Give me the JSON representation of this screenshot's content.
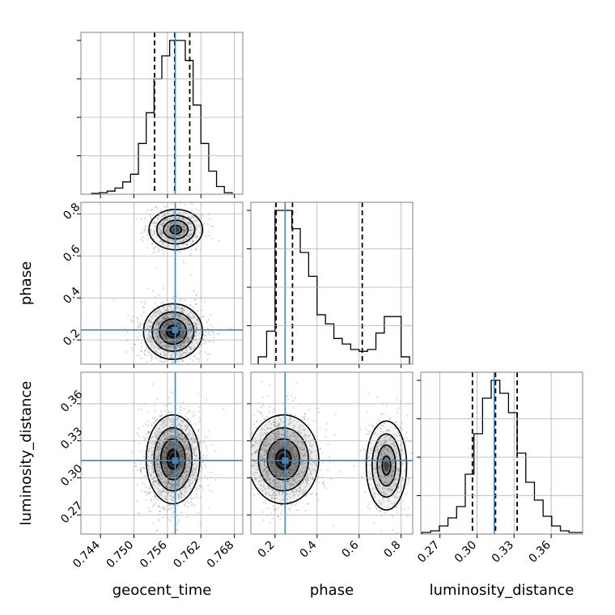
{
  "chart_data": {
    "type": "corner",
    "parameters": [
      "geocent_time",
      "phase",
      "luminosity_distance"
    ],
    "truths": {
      "geocent_time": 0.7574,
      "phase": 0.248,
      "luminosity_distance": 0.314
    },
    "axes": {
      "geocent_time": {
        "range": [
          0.7405,
          0.7695
        ],
        "ticks": [
          "0.744",
          "0.750",
          "0.756",
          "0.762",
          "0.768"
        ]
      },
      "phase": {
        "range": [
          0.085,
          0.855
        ],
        "ticks": [
          "0.2",
          "0.4",
          "0.6",
          "0.8"
        ]
      },
      "luminosity_distance": {
        "range": [
          0.2545,
          0.3855
        ],
        "ticks": [
          "0.27",
          "0.30",
          "0.33",
          "0.36"
        ]
      }
    },
    "marginals": {
      "geocent_time": {
        "quantiles": [
          0.7537,
          0.7573,
          0.76
        ],
        "bin_edges": [
          0.7424,
          0.7438,
          0.7452,
          0.7466,
          0.748,
          0.7494,
          0.7508,
          0.7522,
          0.7536,
          0.755,
          0.7564,
          0.7578,
          0.7592,
          0.7606,
          0.762,
          0.7634,
          0.7648,
          0.7662,
          0.7676
        ],
        "counts": [
          0.5,
          1,
          2,
          4,
          8,
          13,
          33,
          53,
          75,
          90,
          100,
          100,
          87,
          58,
          33,
          15,
          5,
          1
        ]
      },
      "phase": {
        "quantiles": [
          0.205,
          0.283,
          0.615
        ],
        "bin_edges": [
          0.12,
          0.16,
          0.2,
          0.24,
          0.28,
          0.32,
          0.36,
          0.4,
          0.44,
          0.48,
          0.52,
          0.56,
          0.6,
          0.64,
          0.68,
          0.72,
          0.76,
          0.8,
          0.84
        ],
        "counts": [
          4,
          18,
          84,
          84,
          74,
          61,
          48,
          27,
          22,
          14,
          11,
          8,
          7,
          8,
          17,
          26,
          26,
          4
        ]
      },
      "luminosity_distance": {
        "quantiles": [
          0.2963,
          0.315,
          0.3325
        ],
        "bin_edges": [
          0.2555,
          0.2625,
          0.2695,
          0.2765,
          0.2835,
          0.2905,
          0.2975,
          0.3045,
          0.3115,
          0.3185,
          0.3255,
          0.3325,
          0.3395,
          0.3465,
          0.3535,
          0.3605,
          0.3675,
          0.3745,
          0.3815,
          0.3855
        ],
        "counts": [
          1,
          2,
          5,
          10,
          17,
          37,
          62,
          84,
          95,
          87,
          75,
          50,
          32,
          21,
          11,
          5,
          2,
          1,
          1
        ]
      }
    },
    "joint": [
      {
        "x": "geocent_time",
        "y": "phase",
        "components": [
          {
            "x": 0.757,
            "y": 0.24,
            "sx": 0.0022,
            "sy": 0.055,
            "weight": 1.0
          },
          {
            "x": 0.7575,
            "y": 0.725,
            "sx": 0.002,
            "sy": 0.04,
            "weight": 0.5
          }
        ]
      },
      {
        "x": "geocent_time",
        "y": "luminosity_distance",
        "components": [
          {
            "x": 0.757,
            "y": 0.315,
            "sx": 0.002,
            "sy": 0.015,
            "weight": 1.0
          }
        ]
      },
      {
        "x": "phase",
        "y": "luminosity_distance",
        "components": [
          {
            "x": 0.24,
            "y": 0.315,
            "sx": 0.07,
            "sy": 0.015,
            "weight": 1.0
          },
          {
            "x": 0.73,
            "y": 0.31,
            "sx": 0.04,
            "sy": 0.015,
            "weight": 0.4
          }
        ]
      }
    ],
    "colors": {
      "truth": "#4682b4",
      "contour": "#000000",
      "grid": "#b0b0b0",
      "points": "#808080"
    }
  }
}
